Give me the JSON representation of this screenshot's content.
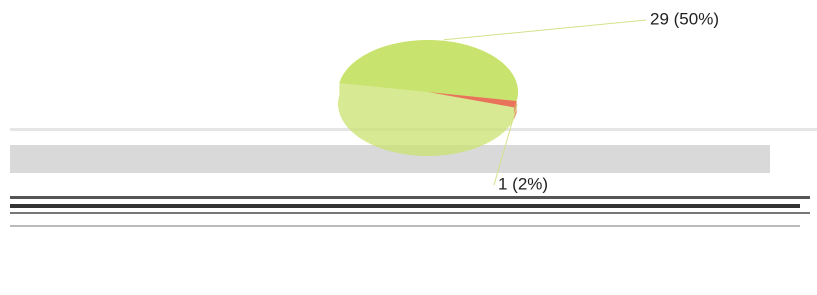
{
  "chart_data": {
    "type": "pie",
    "values": [
      50,
      2
    ],
    "value_labels": [
      "29 (50%)",
      "1 (2%)"
    ],
    "colors": [
      "#c9e36f",
      "#e8735a"
    ]
  }
}
